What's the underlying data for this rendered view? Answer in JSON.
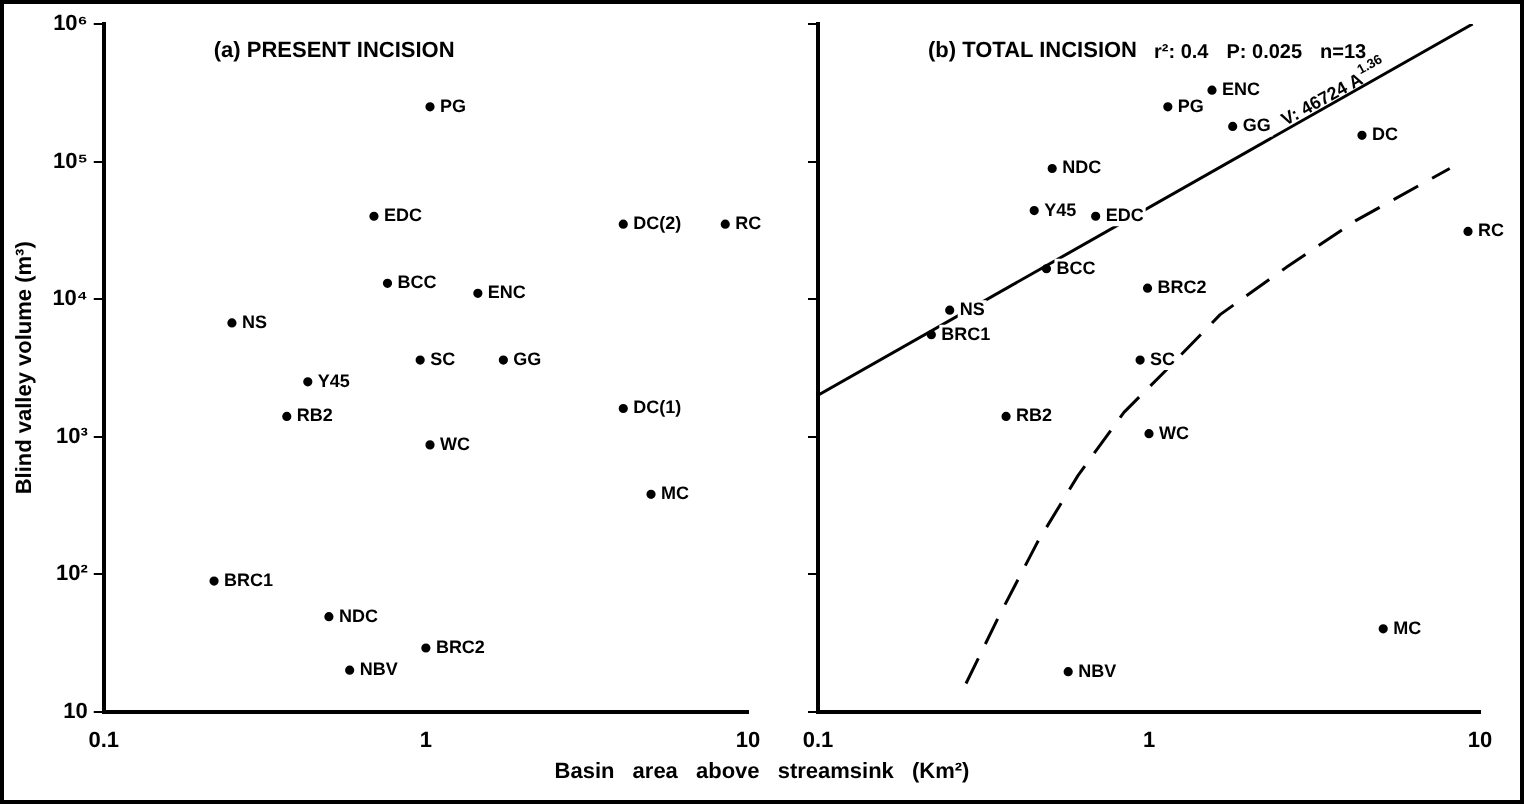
{
  "chart_data": [
    {
      "type": "scatter",
      "title": "(a) PRESENT INCISION",
      "xlabel": "Basin area above streamsink (Km²)",
      "ylabel": "Blind valley volume (m³)",
      "log": "xy",
      "xlim": [
        0.1,
        10
      ],
      "ylim": [
        10,
        1000000
      ],
      "xticks": [
        0.1,
        1,
        10
      ],
      "yticks": [
        10,
        {
          "value": 100,
          "label": "10²"
        },
        {
          "value": 1000,
          "label": "10³"
        },
        {
          "value": 10000,
          "label": "10⁴"
        },
        {
          "value": 100000,
          "label": "10⁵"
        },
        {
          "value": 1000000,
          "label": "10⁶"
        }
      ],
      "grid": false,
      "legend": false,
      "marker": "circle",
      "series": [
        {
          "color": "#000000",
          "x": [
            1.03,
            0.69,
            4.1,
            8.5,
            0.76,
            1.45,
            0.25,
            0.43,
            0.96,
            1.74,
            0.37,
            4.1,
            1.03,
            5.0,
            0.22,
            0.5,
            1.0,
            0.58
          ],
          "values": [
            250000,
            40000,
            35000,
            35000,
            13000,
            11000,
            6700,
            2500,
            3600,
            3600,
            1400,
            1600,
            870,
            380,
            89,
            49,
            29,
            20
          ],
          "value_labels": [
            "PG",
            "EDC",
            "DC(2)",
            "RC",
            "BCC",
            "ENC",
            "NS",
            "Y45",
            "SC",
            "GG",
            "RB2",
            "DC(1)",
            "WC",
            "MC",
            "BRC1",
            "NDC",
            "BRC2",
            "NBV"
          ]
        }
      ]
    },
    {
      "type": "scatter",
      "title": "(b) TOTAL INCISION",
      "log": "xy",
      "xlim": [
        0.1,
        10
      ],
      "ylim": [
        10,
        1000000
      ],
      "xticks": [
        0.1,
        1,
        10
      ],
      "yticks": [
        {
          "value": 10,
          "label": null
        },
        {
          "value": 100,
          "label": null
        },
        {
          "value": 1000,
          "label": null
        },
        {
          "value": 10000,
          "label": null
        },
        {
          "value": 100000,
          "label": null
        },
        {
          "value": 1000000,
          "label": null
        }
      ],
      "tick_labels": "x",
      "grid": false,
      "legend": false,
      "marker": "circle",
      "annotations": [
        "r²: 0.4",
        "P: 0.025",
        "n=13",
        "V: 46724 A$^{1.36}$"
      ],
      "series": [
        {
          "color": "#000000",
          "x": [
            1.55,
            1.14,
            1.79,
            4.4,
            0.51,
            0.45,
            0.69,
            9.2,
            0.49,
            0.99,
            0.25,
            0.22,
            0.94,
            0.37,
            1.0,
            5.1,
            0.57
          ],
          "values": [
            330000,
            250000,
            180000,
            155000,
            89000,
            44000,
            40000,
            31000,
            16600,
            12000,
            8300,
            5500,
            3600,
            1400,
            1050,
            40,
            19.5
          ],
          "value_labels": [
            "ENC",
            "PG",
            "GG",
            "DC",
            "NDC",
            "Y45",
            "EDC",
            "RC",
            "BCC",
            "BRC2",
            "NS",
            "BRC1",
            "SC",
            "RB2",
            "WC",
            "MC",
            "NBV"
          ]
        },
        {
          "type": "line",
          "color": "#000000",
          "line_style": "solid",
          "marker": "none",
          "x": [
            0.1,
            9.5
          ],
          "values": [
            2000,
            1000000
          ]
        },
        {
          "type": "line",
          "color": "#000000",
          "line_style": "dashed",
          "marker": "none",
          "x": [
            0.28,
            0.35,
            0.46,
            0.61,
            0.84,
            1.12,
            1.64,
            2.6,
            4.2,
            8.1
          ],
          "values": [
            16,
            48,
            170,
            520,
            1500,
            3000,
            7700,
            17000,
            37000,
            89000
          ]
        }
      ]
    }
  ]
}
